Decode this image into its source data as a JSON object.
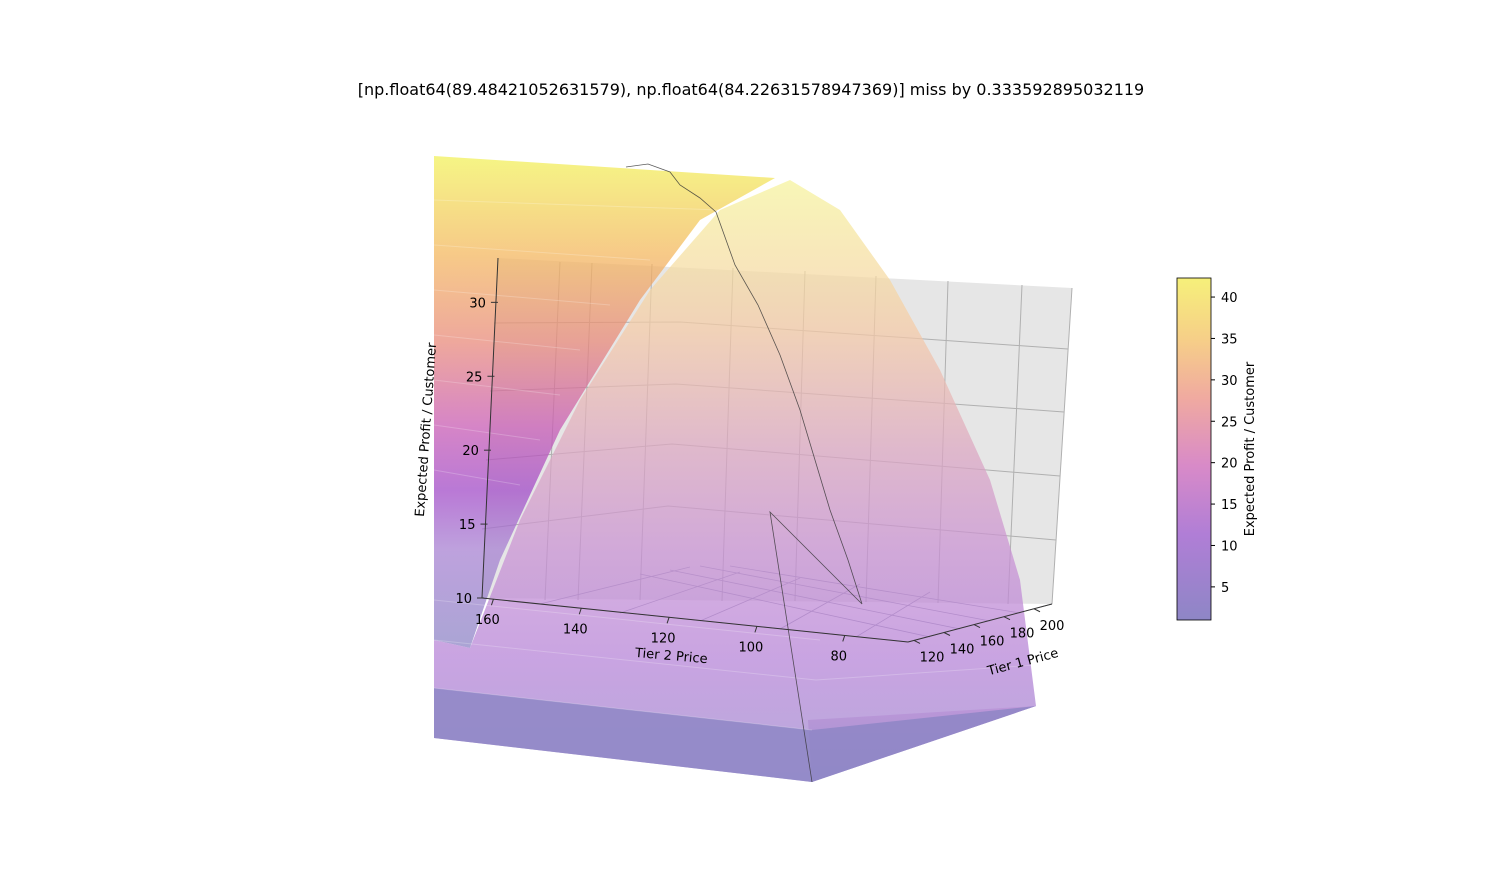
{
  "chart_data": {
    "type": "surface3d",
    "title": "[np.float64(89.48421052631579), np.float64(84.22631578947369)] miss by 0.333592895032119",
    "xlabel": "Tier 1 Price",
    "ylabel": "Tier 2 Price",
    "zlabel": "Expected Profit / Customer",
    "x_ticks": [
      "120",
      "140",
      "160",
      "180",
      "200"
    ],
    "y_ticks": [
      "160",
      "140",
      "120",
      "100",
      "80"
    ],
    "z_ticks": [
      "10",
      "15",
      "20",
      "25",
      "30"
    ],
    "zlim": [
      10,
      33
    ],
    "grid": true,
    "colormap": "plasma",
    "surface_alpha": 0.5,
    "colorbar": {
      "label": "Expected Profit / Customer",
      "ticks": [
        "5",
        "10",
        "15",
        "20",
        "25",
        "30",
        "35",
        "40"
      ],
      "range": [
        1,
        42.3
      ]
    },
    "optimum": {
      "tier1_price": 89.48421052631579,
      "tier2_price": 84.22631578947369,
      "miss": 0.333592895032119
    },
    "surface_peak_value": 42.3
  },
  "colors": {
    "pane": "#e6e6e6",
    "grid": "#b0b0b0",
    "path": "#333333",
    "cmap_low": "#8e86c6",
    "cmap_mid": "#c77fd6",
    "cmap_high": "#f1f16a"
  }
}
